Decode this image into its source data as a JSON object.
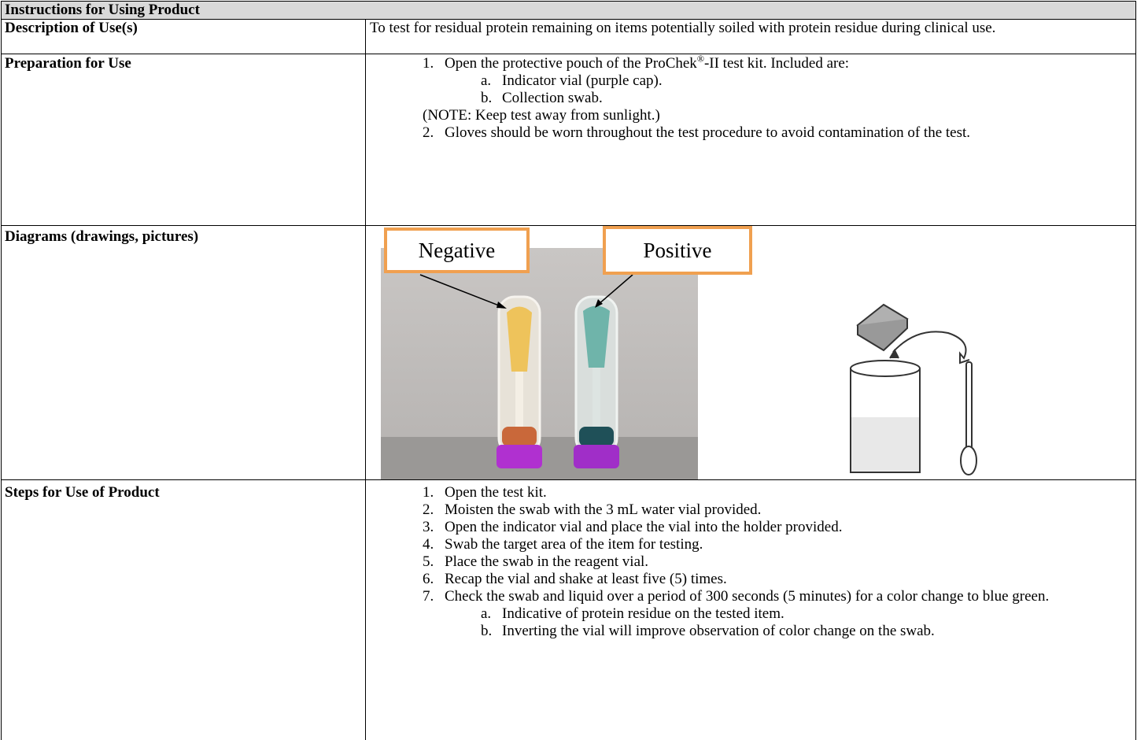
{
  "header": {
    "title": "Instructions for Using Product"
  },
  "description": {
    "label": "Description of Use(s)",
    "text": "To test for residual protein remaining on items potentially soiled with protein residue during clinical use."
  },
  "preparation": {
    "label": "Preparation for Use",
    "items": [
      {
        "marker": "1.",
        "text_parts": [
          "Open the protective pouch of the ProChek",
          "®",
          "-II test kit. Included are:"
        ],
        "subitems": [
          {
            "marker": "a.",
            "text": "Indicator vial (purple cap)."
          },
          {
            "marker": "b.",
            "text": "Collection swab."
          }
        ],
        "note": "(NOTE: Keep test away from sunlight.)"
      },
      {
        "marker": "2.",
        "text": "Gloves should be worn throughout the test procedure to avoid contamination of the test."
      }
    ]
  },
  "diagrams": {
    "label": "Diagrams (drawings, pictures)",
    "negative": "Negative",
    "positive": "Positive"
  },
  "steps": {
    "label": "Steps for Use of Product",
    "items": [
      {
        "marker": "1.",
        "text": "Open the test kit."
      },
      {
        "marker": "2.",
        "text": "Moisten the swab with the 3 mL water vial provided."
      },
      {
        "marker": "3.",
        "text": "Open the indicator vial and place the vial into the holder provided."
      },
      {
        "marker": "4.",
        "text": "Swab the target area of the item for testing."
      },
      {
        "marker": "5.",
        "text": "Place the swab in the reagent vial."
      },
      {
        "marker": "6.",
        "text": "Recap the vial and shake at least five (5) times."
      },
      {
        "marker": "7.",
        "text": "Check the swab and liquid over a period of 300 seconds (5 minutes) for a color change to blue green.",
        "subitems": [
          {
            "marker": "a.",
            "text": "Indicative of protein residue on the tested item."
          },
          {
            "marker": "b.",
            "text": "Inverting the vial will improve observation of color change on the swab."
          }
        ]
      }
    ]
  }
}
